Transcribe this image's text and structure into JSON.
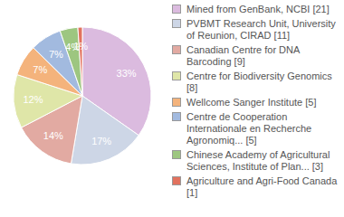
{
  "chart_data": {
    "type": "pie",
    "categories": [
      "Mined from GenBank, NCBI [21]",
      "PVBMT Research Unit, University of Reunion, CIRAD [11]",
      "Canadian Centre for DNA Barcoding [9]",
      "Centre for Biodiversity Genomics [8]",
      "Wellcome Sanger Institute [5]",
      "Centre de Cooperation Internationale en Recherche Agronomiq... [5]",
      "Chinese Academy of Agricultural Sciences, Institute of Plan... [3]",
      "Agriculture and Agri-Food Canada [1]"
    ],
    "values": [
      33,
      17,
      14,
      12,
      7,
      7,
      4,
      1
    ],
    "value_labels": [
      "33%",
      "17%",
      "14%",
      "12%",
      "7%",
      "7%",
      "4%",
      "1%"
    ],
    "colors": [
      "#dbbbdf",
      "#cdd6e6",
      "#e2aaa2",
      "#dfe6a8",
      "#f4b37c",
      "#a2badf",
      "#9dc680",
      "#e2725e"
    ],
    "data_labels": true,
    "legend": "right"
  }
}
